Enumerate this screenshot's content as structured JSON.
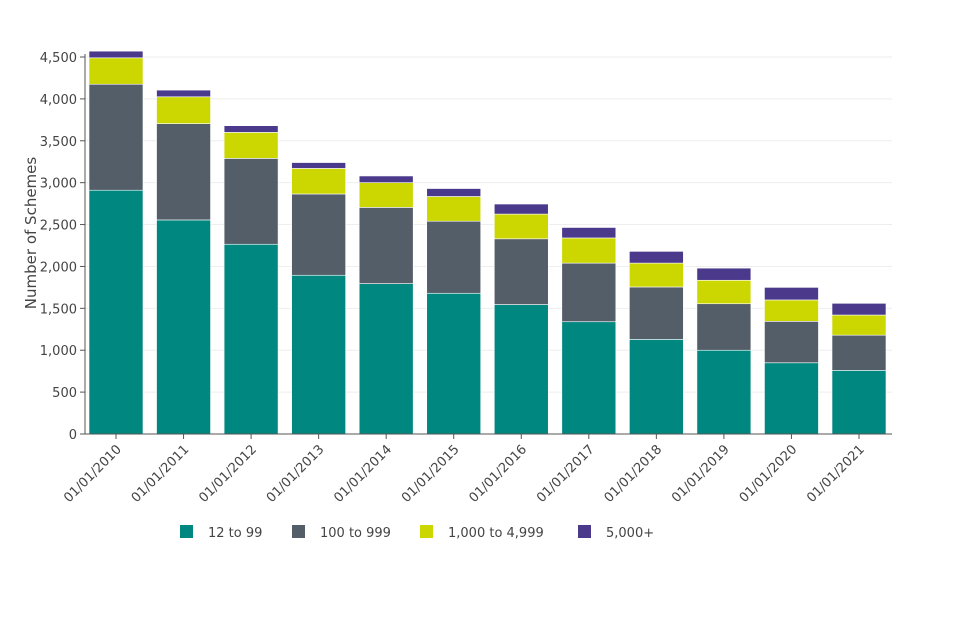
{
  "chart_data": {
    "type": "bar",
    "stacked": true,
    "title": "",
    "xlabel": "",
    "ylabel": "Number of Schemes",
    "ylim": [
      0,
      4500
    ],
    "yticks": [
      0,
      500,
      1000,
      1500,
      2000,
      2500,
      3000,
      3500,
      4000,
      4500
    ],
    "ytick_labels": [
      "0",
      "500",
      "1,000",
      "1,500",
      "2,000",
      "2,500",
      "3,000",
      "3,500",
      "4,000",
      "4,500"
    ],
    "grid": true,
    "legend_position": "bottom",
    "categories": [
      "01/01/2010",
      "01/01/2011",
      "01/01/2012",
      "01/01/2013",
      "01/01/2014",
      "01/01/2015",
      "01/01/2016",
      "01/01/2017",
      "01/01/2018",
      "01/01/2019",
      "01/01/2020",
      "01/01/2021"
    ],
    "series": [
      {
        "name": "12 to 99",
        "color": "#00877F",
        "values": [
          2910,
          2555,
          2265,
          1895,
          1795,
          1680,
          1545,
          1340,
          1130,
          1000,
          850,
          760
        ]
      },
      {
        "name": "100 to 999",
        "color": "#535E69",
        "values": [
          1265,
          1150,
          1025,
          970,
          910,
          860,
          785,
          700,
          625,
          555,
          495,
          420
        ]
      },
      {
        "name": "1,000 to 4,999",
        "color": "#CCD600",
        "values": [
          315,
          320,
          310,
          305,
          295,
          295,
          295,
          300,
          285,
          280,
          255,
          240
        ]
      },
      {
        "name": "5,000+",
        "color": "#4B3A8C",
        "values": [
          80,
          80,
          80,
          70,
          80,
          95,
          120,
          125,
          140,
          145,
          150,
          140
        ]
      }
    ]
  }
}
